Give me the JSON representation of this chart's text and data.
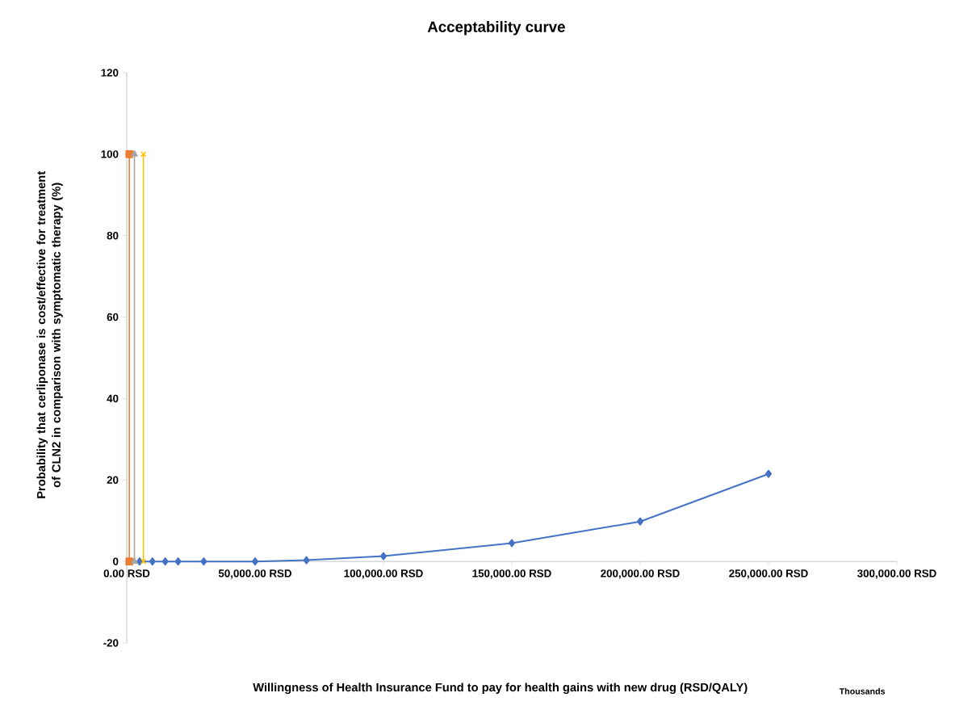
{
  "chart_data": {
    "type": "line",
    "title": "Acceptability curve",
    "xlabel": "Willingness of Health Insurance Fund to pay for health gains with new drug (RSD/QALY)",
    "ylabel": "Probability that cerliponase is cost/effective for treatment of CLN2 in comparison with symptomatic therapy (%)",
    "annotations": [
      "Thousands"
    ],
    "xlim": [
      0,
      300000
    ],
    "ylim": [
      -20,
      120
    ],
    "xticks": [
      {
        "value": 0,
        "label": "0.00 RSD"
      },
      {
        "value": 50000,
        "label": "50,000.00 RSD"
      },
      {
        "value": 100000,
        "label": "100,000.00 RSD"
      },
      {
        "value": 150000,
        "label": "150,000.00 RSD"
      },
      {
        "value": 200000,
        "label": "200,000.00 RSD"
      },
      {
        "value": 250000,
        "label": "250,000.00 RSD"
      },
      {
        "value": 300000,
        "label": "300,000.00 RSD"
      }
    ],
    "yticks": [
      -20,
      0,
      20,
      40,
      60,
      80,
      100,
      120
    ],
    "series": [
      {
        "color": "#4472c4",
        "marker": "diamond",
        "x": [
          5000,
          10000,
          15000,
          20000,
          30000,
          50000,
          70000,
          100000,
          150000,
          200000,
          250000
        ],
        "values": [
          0,
          0,
          0,
          0,
          0,
          0,
          0.3,
          1.3,
          4.5,
          9.8,
          21.5
        ]
      },
      {
        "color": "#ed7d31",
        "marker": "square",
        "x": [
          1000,
          1000
        ],
        "values": [
          0,
          100
        ]
      },
      {
        "color": "#a5a5a5",
        "marker": "triangle",
        "x": [
          3000,
          3000
        ],
        "values": [
          0,
          100
        ]
      },
      {
        "color": "#ffc000",
        "marker": "cross",
        "x": [
          6500,
          6500
        ],
        "values": [
          0,
          100
        ]
      }
    ]
  }
}
